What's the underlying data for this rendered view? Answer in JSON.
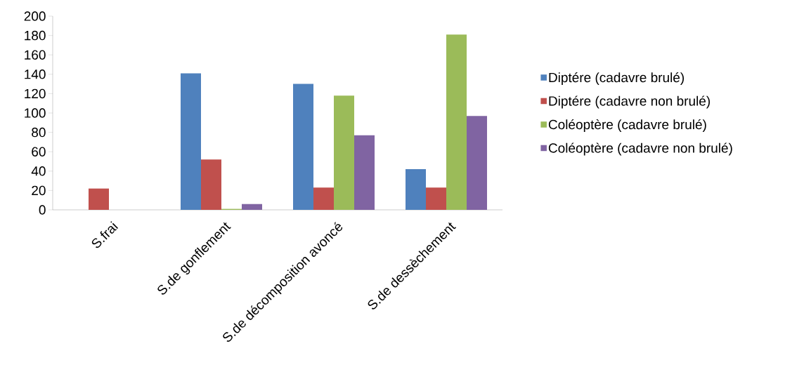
{
  "chart_data": {
    "type": "bar",
    "categories": [
      "S.frai",
      "S.de gonflement",
      "S.de décomposition avoncé",
      "S.de dessèchement"
    ],
    "series": [
      {
        "name": "Diptére (cadavre brulé)",
        "color": "#4f81bd",
        "values": [
          0,
          141,
          130,
          42
        ]
      },
      {
        "name": "Diptére (cadavre non brulé)",
        "color": "#c0504d",
        "values": [
          22,
          52,
          23,
          23
        ]
      },
      {
        "name": "Coléoptère (cadavre brulé)",
        "color": "#9bbb59",
        "values": [
          0,
          1,
          118,
          181
        ]
      },
      {
        "name": "Coléoptère (cadavre non brulé)",
        "color": "#8064a2",
        "values": [
          0,
          6,
          77,
          97
        ]
      }
    ],
    "ylim": [
      0,
      200
    ],
    "yticks": [
      0,
      20,
      40,
      60,
      80,
      100,
      120,
      140,
      160,
      180,
      200
    ],
    "grid": false,
    "legend": "right"
  }
}
